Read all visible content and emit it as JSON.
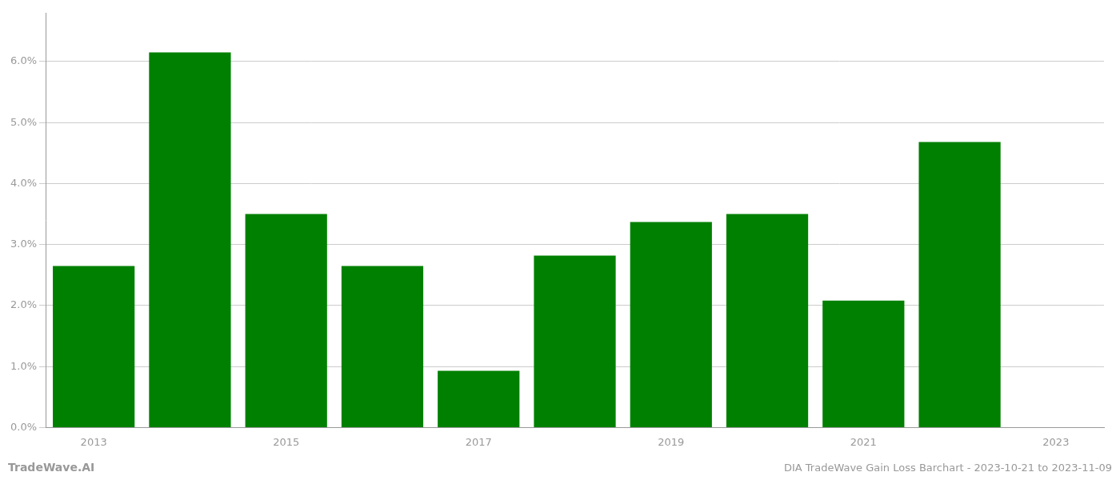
{
  "chart_data": {
    "type": "bar",
    "title": "DIA TradeWave Gain Loss Barchart - 2023-10-21 to 2023-11-09",
    "annotations": [
      "TradeWave.AI"
    ],
    "categories": [
      "2013",
      null,
      "2015",
      null,
      "2017",
      null,
      "2019",
      null,
      "2021",
      null,
      "2023"
    ],
    "values": [
      0.0265,
      0.0615,
      0.035,
      0.0265,
      0.0093,
      0.0282,
      0.0337,
      0.035,
      0.0208,
      0.0468,
      null
    ],
    "color": "#008000",
    "ylim": [
      0.0,
      0.068
    ],
    "yticks": [
      {
        "value": 0.0,
        "label": "0.0%"
      },
      {
        "value": 0.01,
        "label": "1.0%"
      },
      {
        "value": 0.02,
        "label": "2.0%"
      },
      {
        "value": 0.03,
        "label": "3.0%"
      },
      {
        "value": 0.04,
        "label": "4.0%"
      },
      {
        "value": 0.05,
        "label": "5.0%"
      },
      {
        "value": 0.06,
        "label": "6.0%"
      }
    ],
    "grid": true
  }
}
